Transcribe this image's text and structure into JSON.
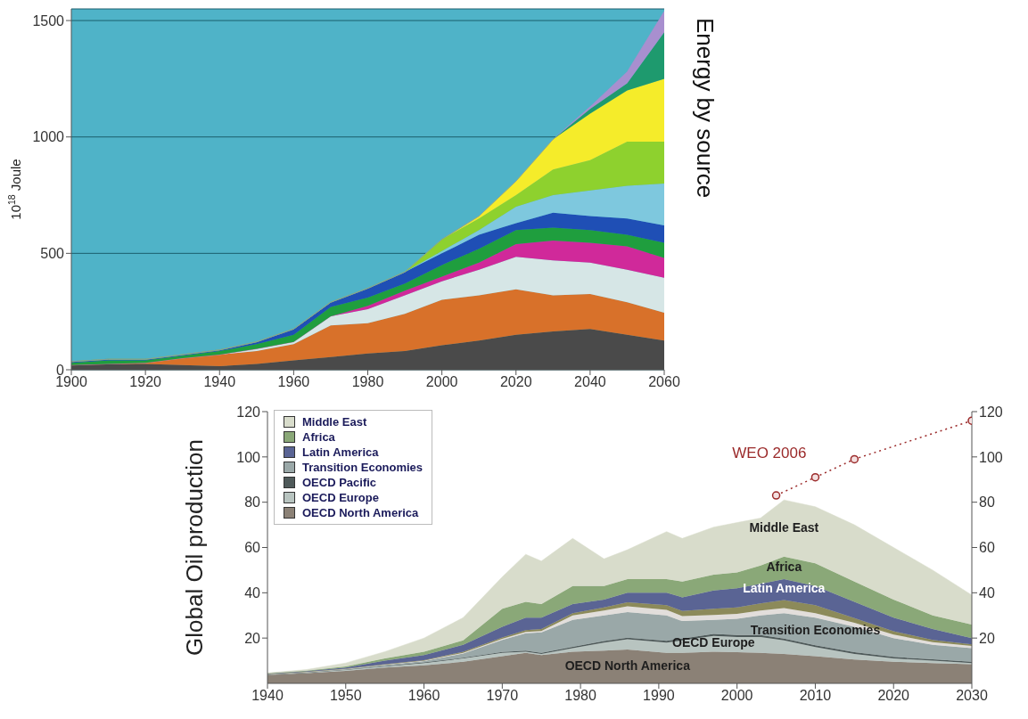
{
  "chart_data": [
    {
      "type": "area",
      "stacked": true,
      "title": "Energy  by source",
      "ylabel": "10$^{18}$ Joule",
      "x": [
        1900,
        1910,
        1920,
        1930,
        1940,
        1950,
        1960,
        1970,
        1980,
        1990,
        2000,
        2010,
        2020,
        2030,
        2040,
        2050,
        2060
      ],
      "xlim": [
        1900,
        2060
      ],
      "xticks": [
        1900,
        1920,
        1940,
        1960,
        1980,
        2000,
        2020,
        2040,
        2060
      ],
      "ylim": [
        0,
        1550
      ],
      "yticks": [
        0,
        500,
        1000,
        1500
      ],
      "grid": "y",
      "series": [
        {
          "color": "#4a4a4a",
          "values": [
            20,
            25,
            25,
            20,
            15,
            25,
            40,
            55,
            70,
            80,
            105,
            125,
            150,
            165,
            175,
            150,
            125
          ]
        },
        {
          "color": "#d8712a",
          "values": [
            0,
            0,
            5,
            30,
            50,
            55,
            70,
            135,
            130,
            160,
            195,
            195,
            195,
            155,
            150,
            140,
            120
          ]
        },
        {
          "color": "#d6e6e6",
          "values": [
            0,
            0,
            0,
            0,
            0,
            10,
            10,
            40,
            60,
            80,
            80,
            110,
            140,
            150,
            135,
            140,
            150
          ]
        },
        {
          "color": "#d0299a",
          "values": [
            0,
            0,
            0,
            0,
            0,
            0,
            0,
            0,
            15,
            20,
            20,
            30,
            55,
            85,
            85,
            100,
            85
          ]
        },
        {
          "color": "#1f9e3e",
          "values": [
            10,
            15,
            10,
            10,
            15,
            20,
            30,
            40,
            35,
            30,
            50,
            60,
            60,
            55,
            55,
            50,
            65
          ]
        },
        {
          "color": "#1f4fb5",
          "values": [
            5,
            5,
            5,
            5,
            5,
            10,
            25,
            20,
            40,
            50,
            50,
            60,
            30,
            65,
            60,
            70,
            75
          ]
        },
        {
          "color": "#7ec8de",
          "values": [
            0,
            0,
            0,
            0,
            0,
            0,
            0,
            0,
            0,
            0,
            10,
            20,
            70,
            75,
            110,
            140,
            180
          ]
        },
        {
          "color": "#8ed12e",
          "values": [
            0,
            0,
            0,
            0,
            0,
            0,
            0,
            0,
            0,
            0,
            50,
            50,
            50,
            110,
            130,
            190,
            180
          ]
        },
        {
          "color": "#f5ec2a",
          "values": [
            0,
            0,
            0,
            0,
            0,
            0,
            0,
            0,
            0,
            0,
            0,
            10,
            60,
            130,
            200,
            220,
            270
          ]
        },
        {
          "color": "#1e9a6e",
          "values": [
            0,
            0,
            0,
            0,
            0,
            0,
            0,
            0,
            0,
            0,
            0,
            0,
            0,
            0,
            20,
            30,
            200
          ]
        },
        {
          "color": "#a88fcf",
          "values": [
            0,
            0,
            0,
            0,
            0,
            0,
            0,
            0,
            0,
            0,
            0,
            0,
            0,
            0,
            10,
            50,
            90
          ]
        }
      ]
    },
    {
      "type": "area",
      "stacked": true,
      "ylabel": "Global Oil production",
      "legend": "top left",
      "x": [
        1940,
        1945,
        1950,
        1955,
        1960,
        1965,
        1970,
        1973,
        1975,
        1979,
        1983,
        1986,
        1991,
        1993,
        1997,
        2000,
        2003,
        2006,
        2010,
        2015,
        2020,
        2025,
        2030
      ],
      "xlim": [
        1940,
        2030
      ],
      "xticks": [
        1940,
        1950,
        1960,
        1970,
        1980,
        1990,
        2000,
        2010,
        2020,
        2030
      ],
      "ylim": [
        0,
        120
      ],
      "yticks": [
        20,
        40,
        60,
        80,
        100,
        120
      ],
      "y2lim": [
        0,
        120
      ],
      "y2ticks": [
        20,
        40,
        60,
        80,
        100,
        120
      ],
      "series": [
        {
          "name": "OECD North America",
          "color": "#8b8176",
          "values": [
            3.7,
            4.5,
            5.5,
            7,
            8,
            9.5,
            12,
            13.5,
            12.5,
            14,
            14.5,
            15,
            13.5,
            13.5,
            14,
            13.8,
            13.5,
            13,
            12,
            10.5,
            9.5,
            9,
            8.5
          ]
        },
        {
          "name": "OECD Europe",
          "color": "#b8c4c0",
          "values": [
            0.1,
            0.2,
            0.5,
            0.5,
            1,
            1.5,
            1.5,
            0.5,
            0.5,
            1.5,
            3.5,
            4.5,
            4.5,
            5.5,
            7,
            6.7,
            7,
            6,
            4,
            2.5,
            1.5,
            1,
            0.5
          ]
        },
        {
          "name": "OECD Pacific",
          "color": "#4f5a5a",
          "values": [
            0.1,
            0.1,
            0.1,
            0.2,
            0.2,
            0.3,
            0.4,
            0.5,
            0.5,
            0.6,
            0.7,
            0.7,
            0.8,
            0.8,
            0.8,
            0.8,
            0.8,
            0.8,
            0.8,
            0.8,
            0.7,
            0.6,
            0.5
          ]
        },
        {
          "name": "Transition Economies",
          "color": "#9aa8a8",
          "values": [
            0.1,
            0.2,
            0.2,
            0.5,
            0.6,
            1.9,
            5.3,
            7.6,
            9,
            11.9,
            11.3,
            11.3,
            11.2,
            7.7,
            6.2,
            7.2,
            8.7,
            11.2,
            12.2,
            11.2,
            8.3,
            6.4,
            6
          ]
        },
        {
          "color": "#e2dedb",
          "values": [
            0.1,
            0.1,
            0.1,
            0.1,
            0.2,
            0.3,
            0.5,
            0.6,
            0.6,
            2,
            2.2,
            2.5,
            2.5,
            2.2,
            2.2,
            2.2,
            2.2,
            2.2,
            2,
            1.8,
            1.5,
            1.2,
            1
          ]
        },
        {
          "color": "#8c8a5a",
          "values": [
            0.1,
            0.1,
            0.1,
            0.2,
            0.2,
            0.5,
            0.6,
            0.8,
            0.9,
            1,
            1.3,
            1.8,
            2,
            2.3,
            2.8,
            2.8,
            3.1,
            3.6,
            3.5,
            2,
            1.5,
            1,
            0.7
          ]
        },
        {
          "name": "Latin America",
          "color": "#5a6494",
          "values": [
            0.1,
            0.2,
            0.5,
            1.5,
            2.3,
            3,
            4.7,
            5.5,
            5,
            4,
            3.5,
            4.2,
            5.5,
            6,
            8,
            8.5,
            8.7,
            9.2,
            8.5,
            7.2,
            6,
            4.8,
            2.8
          ]
        },
        {
          "name": "Africa",
          "color": "#8aa878",
          "values": [
            0.1,
            0.2,
            0.5,
            1,
            1.5,
            2,
            8,
            7,
            6,
            8,
            6,
            6,
            6,
            7,
            7,
            7,
            8,
            10,
            10,
            9,
            8,
            6,
            6
          ]
        },
        {
          "name": "Middle East",
          "color": "#d8dccb",
          "values": [
            0.2,
            0.5,
            1.5,
            3,
            6,
            10,
            14,
            21,
            19,
            21,
            12,
            13,
            21,
            19,
            21,
            22,
            21,
            25,
            25,
            25,
            23,
            20,
            13
          ]
        },
        {
          "name": "WEO 2006",
          "type": "line",
          "color": "#9b2a2a",
          "line_style": "dotted",
          "marker": "circle",
          "x": [
            2005,
            2010,
            2015,
            2030
          ],
          "values": [
            83,
            91,
            99,
            116
          ]
        }
      ]
    }
  ]
}
